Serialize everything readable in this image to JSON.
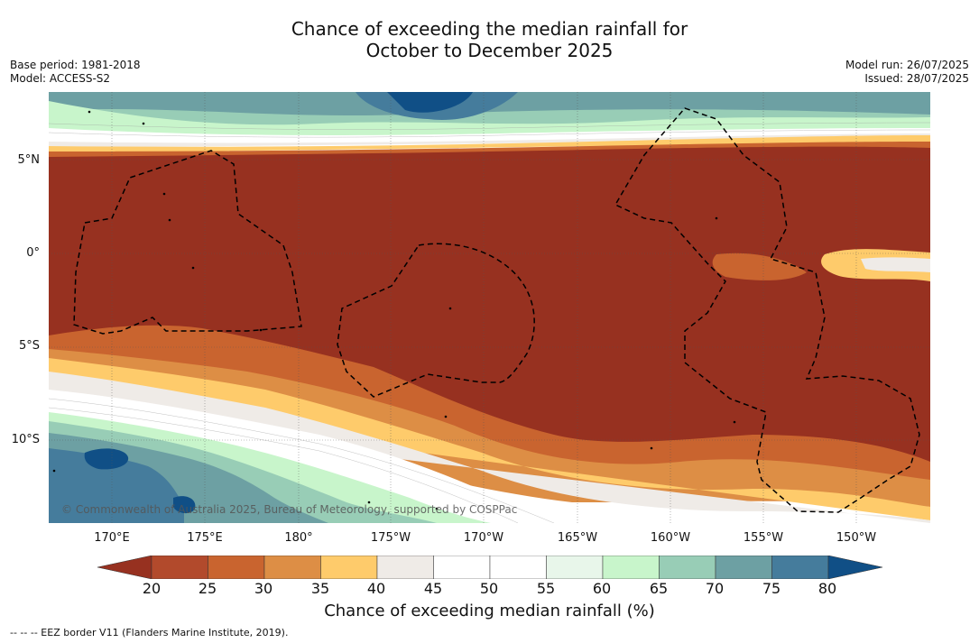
{
  "title_line1": "Chance of exceeding the median rainfall for",
  "title_line2": "October to December 2025",
  "base_period": "Base period: 1981-2018",
  "model": "Model: ACCESS-S2",
  "model_run": "Model run: 26/07/2025",
  "issued": "Issued: 28/07/2025",
  "lat_labels": [
    "5°N",
    "0°",
    "5°S",
    "10°S"
  ],
  "lon_labels": [
    "170°E",
    "175°E",
    "180°",
    "175°W",
    "170°W",
    "165°W",
    "160°W",
    "155°W",
    "150°W"
  ],
  "copyright": "© Commonwealth of Australia 2025, Bureau of Meteorology, supported by COSPPac",
  "colorbar": {
    "ticks": [
      "20",
      "25",
      "30",
      "35",
      "40",
      "45",
      "50",
      "55",
      "60",
      "65",
      "70",
      "75",
      "80"
    ],
    "colors": [
      "#973120",
      "#b24a2c",
      "#c9642f",
      "#dd8e45",
      "#fecb6b",
      "#efebe7",
      "#ffffff",
      "#ffffff",
      "#e8f6ea",
      "#c8f5cb",
      "#98cdb6",
      "#6da0a3",
      "#457c9c",
      "#104f86"
    ],
    "label": "Chance of exceeding median rainfall (%)"
  },
  "footnote": "--  --  -- EEZ border V11 (Flanders Marine Institute, 2019)."
}
